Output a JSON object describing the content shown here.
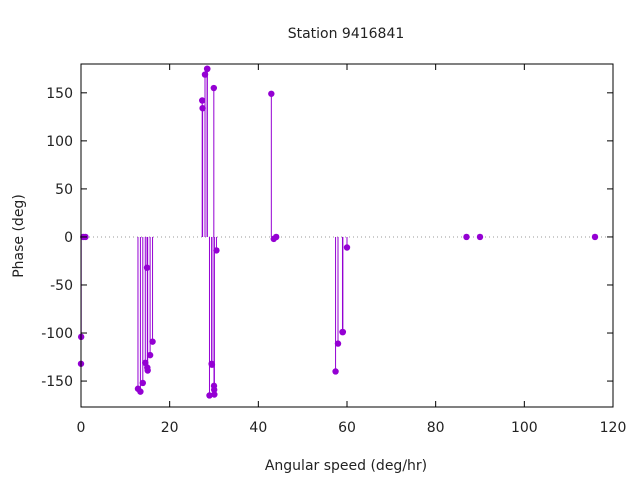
{
  "chart_data": {
    "type": "scatter",
    "style": "impulses-with-points",
    "title": "Station 9416841",
    "xlabel": "Angular speed (deg/hr)",
    "ylabel": "Phase (deg)",
    "xlim": [
      0,
      120
    ],
    "ylim": [
      -177,
      180
    ],
    "xticks": [
      0,
      20,
      40,
      60,
      80,
      100,
      120
    ],
    "yticks": [
      -150,
      -100,
      -50,
      0,
      50,
      100,
      150
    ],
    "zero_line": "dotted",
    "grid": false,
    "legend": "none",
    "color": "#9400d3",
    "points": [
      {
        "x": 0.0,
        "y": -132
      },
      {
        "x": 0.04,
        "y": -104
      },
      {
        "x": 0.5,
        "y": 0
      },
      {
        "x": 1.0,
        "y": 0
      },
      {
        "x": 12.85,
        "y": -158
      },
      {
        "x": 13.4,
        "y": -161
      },
      {
        "x": 13.94,
        "y": -152
      },
      {
        "x": 14.5,
        "y": -131
      },
      {
        "x": 14.9,
        "y": -32
      },
      {
        "x": 14.96,
        "y": -136
      },
      {
        "x": 15.04,
        "y": -139
      },
      {
        "x": 15.59,
        "y": -123
      },
      {
        "x": 16.14,
        "y": -109
      },
      {
        "x": 27.34,
        "y": 142
      },
      {
        "x": 27.43,
        "y": 134
      },
      {
        "x": 27.97,
        "y": 169
      },
      {
        "x": 28.44,
        "y": 175
      },
      {
        "x": 28.5,
        "y": 175
      },
      {
        "x": 28.98,
        "y": -165
      },
      {
        "x": 29.46,
        "y": -132
      },
      {
        "x": 29.53,
        "y": -133
      },
      {
        "x": 29.96,
        "y": 155
      },
      {
        "x": 30.0,
        "y": -155
      },
      {
        "x": 30.04,
        "y": -159
      },
      {
        "x": 30.08,
        "y": -164
      },
      {
        "x": 30.55,
        "y": -14
      },
      {
        "x": 42.93,
        "y": 149
      },
      {
        "x": 43.48,
        "y": -2
      },
      {
        "x": 44.03,
        "y": 0
      },
      {
        "x": 57.42,
        "y": -140
      },
      {
        "x": 57.97,
        "y": -111
      },
      {
        "x": 58.98,
        "y": -99
      },
      {
        "x": 59.07,
        "y": -99
      },
      {
        "x": 60.0,
        "y": -11
      },
      {
        "x": 86.95,
        "y": 0
      },
      {
        "x": 90.0,
        "y": 0
      },
      {
        "x": 115.94,
        "y": 0
      }
    ]
  }
}
